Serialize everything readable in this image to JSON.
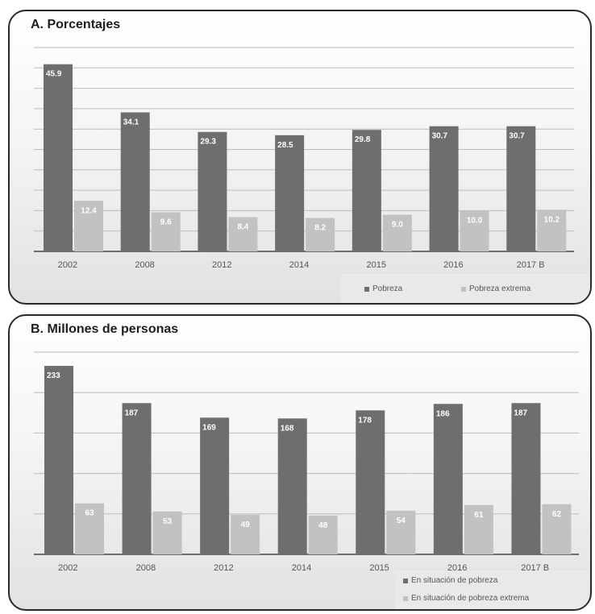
{
  "colors": {
    "dark": "#6e6e6e",
    "light": "#c2c2c2",
    "grid": "#bcbcbc",
    "axis": "#444444"
  },
  "chart_data": [
    {
      "type": "bar",
      "title": "A. Porcentajes",
      "categories": [
        "2002",
        "2008",
        "2012",
        "2014",
        "2015",
        "2016",
        "2017 B"
      ],
      "series": [
        {
          "name": "Pobreza",
          "values": [
            45.9,
            34.1,
            29.3,
            28.5,
            29.8,
            30.7,
            30.7
          ],
          "labels": [
            "45.9",
            "34.1",
            "29.3",
            "28.5",
            "29.8",
            "30.7",
            "30.7"
          ]
        },
        {
          "name": "Pobreza extrema",
          "values": [
            12.4,
            9.6,
            8.4,
            8.2,
            9.0,
            10.0,
            10.2
          ],
          "labels": [
            "12.4",
            "9.6",
            "8.4",
            "8.2",
            "9.0",
            "10.0",
            "10.2"
          ]
        }
      ],
      "ylim": [
        0,
        50
      ],
      "grid": true,
      "legend": "bottom-right"
    },
    {
      "type": "bar",
      "title": "B. Millones de personas",
      "categories": [
        "2002",
        "2008",
        "2012",
        "2014",
        "2015",
        "2016",
        "2017 B"
      ],
      "series": [
        {
          "name": "En situación de pobreza",
          "values": [
            233,
            187,
            169,
            168,
            178,
            186,
            187
          ],
          "labels": [
            "233",
            "187",
            "169",
            "168",
            "178",
            "186",
            "187"
          ]
        },
        {
          "name": "En situación de pobreza extrema",
          "values": [
            63,
            53,
            49,
            48,
            54,
            61,
            62
          ],
          "labels": [
            "63",
            "53",
            "49",
            "48",
            "54",
            "61",
            "62"
          ]
        }
      ],
      "ylim": [
        0,
        250
      ],
      "grid": true,
      "legend": "bottom-right"
    }
  ]
}
